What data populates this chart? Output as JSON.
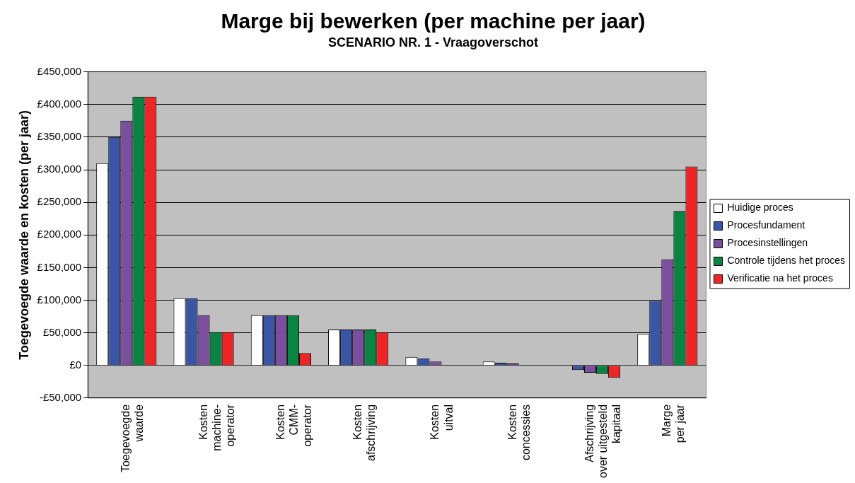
{
  "chart_data": {
    "type": "bar",
    "title": "Marge bij bewerken (per machine per jaar)",
    "subtitle": "SCENARIO NR. 1 - Vraagoverschot",
    "ylabel": "Toegevoegde waarde en kosten (per jaar)",
    "categories": [
      "Toegevoegde\nwaarde",
      "Kosten\nmachine-\noperator",
      "Kosten\nCMM-\noperator",
      "Kosten\nafschrijving",
      "Kosten\nuitval",
      "Kosten\nconcessies",
      "Afschrijving\nover uitgesteld\nkapitaal",
      "Marge\nper jaar"
    ],
    "series": [
      {
        "name": "Huidige proces",
        "color": "#ffffff",
        "values": [
          310000,
          103000,
          77000,
          55000,
          13000,
          6000,
          0,
          48000
        ]
      },
      {
        "name": "Procesfundament",
        "color": "#3a55a4",
        "values": [
          350000,
          103000,
          77000,
          55000,
          11000,
          4000,
          -7000,
          99000
        ]
      },
      {
        "name": "Procesinstellingen",
        "color": "#7a4f9e",
        "values": [
          375000,
          77000,
          77000,
          55000,
          6000,
          3000,
          -11000,
          163000
        ]
      },
      {
        "name": "Controle tijdens het proces",
        "color": "#0a8443",
        "values": [
          412000,
          51000,
          77000,
          55000,
          0,
          0,
          -13000,
          236000
        ]
      },
      {
        "name": "Verificatie na het proces",
        "color": "#ee2527",
        "values": [
          412000,
          51000,
          19000,
          51000,
          0,
          0,
          -19000,
          305000
        ]
      }
    ],
    "ylim": [
      -50000,
      450000
    ],
    "yticks": [
      {
        "value": -50000,
        "label": "-£50,000"
      },
      {
        "value": 0,
        "label": "£0"
      },
      {
        "value": 50000,
        "label": "£50,000"
      },
      {
        "value": 100000,
        "label": "£100,000"
      },
      {
        "value": 150000,
        "label": "£150,000"
      },
      {
        "value": 200000,
        "label": "£200,000"
      },
      {
        "value": 250000,
        "label": "£250,000"
      },
      {
        "value": 300000,
        "label": "£300,000"
      },
      {
        "value": 350000,
        "label": "£350,000"
      },
      {
        "value": 400000,
        "label": "£400,000"
      },
      {
        "value": 450000,
        "label": "£450,000"
      }
    ],
    "grid": "y",
    "legend": "right"
  }
}
